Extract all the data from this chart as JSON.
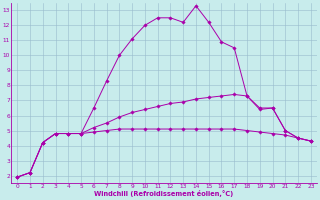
{
  "xlabel": "Windchill (Refroidissement éolien,°C)",
  "bg_color": "#c8ecec",
  "line_color": "#aa00aa",
  "grid_color": "#99bbcc",
  "xlim": [
    -0.5,
    23.5
  ],
  "ylim": [
    1.5,
    13.5
  ],
  "xticks": [
    0,
    1,
    2,
    3,
    4,
    5,
    6,
    7,
    8,
    9,
    10,
    11,
    12,
    13,
    14,
    15,
    16,
    17,
    18,
    19,
    20,
    21,
    22,
    23
  ],
  "yticks": [
    2,
    3,
    4,
    5,
    6,
    7,
    8,
    9,
    10,
    11,
    12,
    13
  ],
  "series": [
    {
      "x": [
        0,
        1,
        2,
        3,
        4,
        5,
        6,
        7,
        8,
        9,
        10,
        11,
        12,
        13,
        14,
        15,
        16,
        17,
        18,
        19,
        20,
        21,
        22,
        23
      ],
      "y": [
        1.9,
        2.2,
        4.2,
        4.8,
        4.8,
        4.8,
        6.5,
        8.3,
        10.0,
        11.1,
        12.0,
        12.5,
        12.5,
        12.2,
        13.3,
        12.2,
        10.9,
        10.5,
        7.3,
        6.5,
        6.5,
        5.0,
        4.5,
        4.3
      ]
    },
    {
      "x": [
        0,
        1,
        2,
        3,
        4,
        5,
        6,
        7,
        8,
        9,
        10,
        11,
        12,
        13,
        14,
        15,
        16,
        17,
        18,
        19,
        20,
        21,
        22,
        23
      ],
      "y": [
        1.9,
        2.2,
        4.2,
        4.8,
        4.8,
        4.8,
        5.2,
        5.5,
        5.9,
        6.2,
        6.4,
        6.6,
        6.8,
        6.9,
        7.1,
        7.2,
        7.3,
        7.4,
        7.3,
        6.4,
        6.5,
        5.0,
        4.5,
        4.3
      ]
    },
    {
      "x": [
        0,
        1,
        2,
        3,
        4,
        5,
        6,
        7,
        8,
        9,
        10,
        11,
        12,
        13,
        14,
        15,
        16,
        17,
        18,
        19,
        20,
        21,
        22,
        23
      ],
      "y": [
        1.9,
        2.2,
        4.2,
        4.8,
        4.8,
        4.8,
        4.9,
        5.0,
        5.1,
        5.1,
        5.1,
        5.1,
        5.1,
        5.1,
        5.1,
        5.1,
        5.1,
        5.1,
        5.0,
        4.9,
        4.8,
        4.7,
        4.5,
        4.3
      ]
    }
  ]
}
